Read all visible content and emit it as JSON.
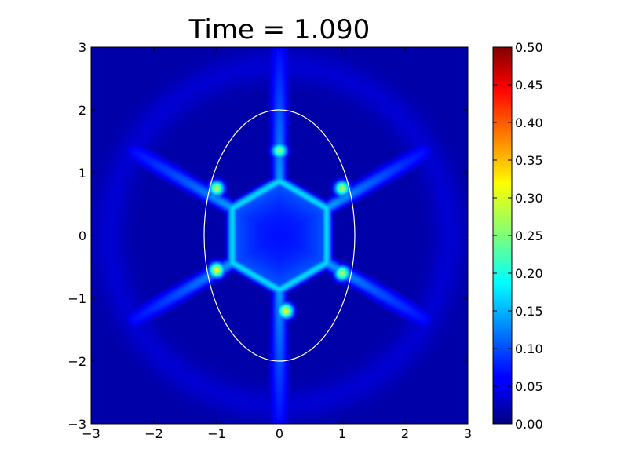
{
  "chart_data": {
    "type": "heatmap",
    "title": "Time = 1.090",
    "xlabel": "",
    "ylabel": "",
    "xlim": [
      -3,
      3
    ],
    "ylim": [
      -3,
      3
    ],
    "x_ticks": [
      -3,
      -2,
      -1,
      0,
      1,
      2,
      3
    ],
    "y_ticks": [
      -3,
      -2,
      -1,
      0,
      1,
      2,
      3
    ],
    "x_tick_labels": [
      "−3",
      "−2",
      "−1",
      "0",
      "1",
      "2",
      "3"
    ],
    "y_tick_labels": [
      "−3",
      "−2",
      "−1",
      "0",
      "1",
      "2",
      "3"
    ],
    "colormap": "jet",
    "colorbar": {
      "min": 0.0,
      "max": 0.5,
      "ticks": [
        0.0,
        0.05,
        0.1,
        0.15,
        0.2,
        0.25,
        0.3,
        0.35,
        0.4,
        0.45,
        0.5
      ],
      "tick_labels": [
        "0.00",
        "0.05",
        "0.10",
        "0.15",
        "0.20",
        "0.25",
        "0.30",
        "0.35",
        "0.40",
        "0.45",
        "0.50"
      ]
    },
    "grid": false,
    "field": {
      "description_keys": "hexagonal core with six radial arms",
      "core_inner_radius": 0.75,
      "core_level_inner": 0.07,
      "core_edge_level": 0.17,
      "arm_angles_deg": [
        90,
        270,
        30,
        150,
        210,
        330
      ],
      "arm_length": [
        2.9,
        2.9,
        2.65,
        2.65,
        2.65,
        2.65
      ],
      "arm_level": 0.14,
      "hotspots": [
        {
          "x": -1.0,
          "y": -0.55,
          "value": 0.3
        },
        {
          "x": 1.0,
          "y": -0.6,
          "value": 0.27
        },
        {
          "x": 0.1,
          "y": -1.2,
          "value": 0.3
        },
        {
          "x": -1.0,
          "y": 0.75,
          "value": 0.27
        },
        {
          "x": 1.0,
          "y": 0.75,
          "value": 0.27
        },
        {
          "x": 0.0,
          "y": 1.35,
          "value": 0.25
        }
      ],
      "background_level": 0.02
    },
    "overlay": {
      "shape": "ellipse",
      "color": "#ffffff",
      "center": [
        0,
        0
      ],
      "semi_axes": [
        1.2,
        2.0
      ]
    }
  }
}
